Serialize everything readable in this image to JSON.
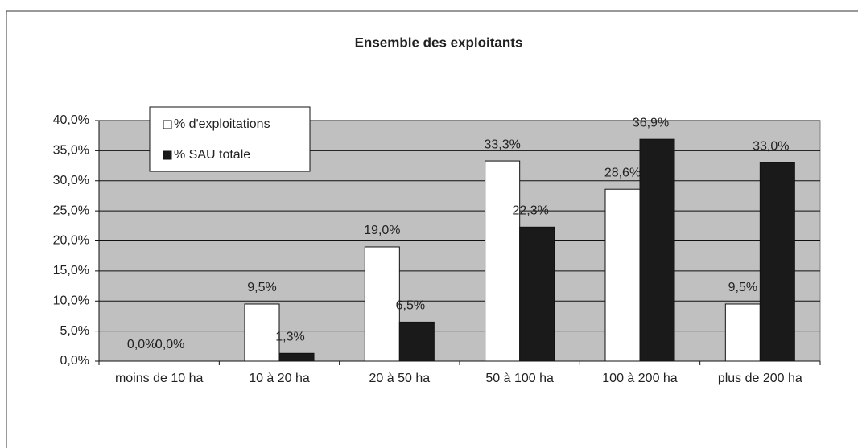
{
  "chart_data": {
    "type": "bar",
    "title": "Ensemble des exploitants",
    "categories": [
      "moins de 10 ha",
      "10 à 20 ha",
      "20 à 50 ha",
      "50 à 100 ha",
      "100 à 200 ha",
      "plus de 200 ha"
    ],
    "series": [
      {
        "name": "% d'exploitations",
        "color": "#ffffff",
        "values": [
          0,
          9.5,
          19,
          33.3,
          28.6,
          9.5
        ],
        "value_labels": [
          "0,0%",
          "9,5%",
          "19,0%",
          "33,3%",
          "28,6%",
          "9,5%"
        ]
      },
      {
        "name": "% SAU totale",
        "color": "#1a1a1a",
        "values": [
          0,
          1.3,
          6.5,
          22.3,
          36.9,
          33
        ],
        "value_labels": [
          "0,0%",
          "1,3%",
          "6,5%",
          "22,3%",
          "36,9%",
          "33,0%"
        ]
      }
    ],
    "ylim": [
      0,
      40
    ],
    "yticks": [
      {
        "value": 0,
        "label": "0,0%"
      },
      {
        "value": 5,
        "label": "5,0%"
      },
      {
        "value": 10,
        "label": "10,0%"
      },
      {
        "value": 15,
        "label": "15,0%"
      },
      {
        "value": 20,
        "label": "20,0%"
      },
      {
        "value": 25,
        "label": "25,0%"
      },
      {
        "value": 30,
        "label": "30,0%"
      },
      {
        "value": 35,
        "label": "35,0%"
      },
      {
        "value": 40,
        "label": "40,0%"
      }
    ],
    "grid": true,
    "legend": "top-left"
  }
}
